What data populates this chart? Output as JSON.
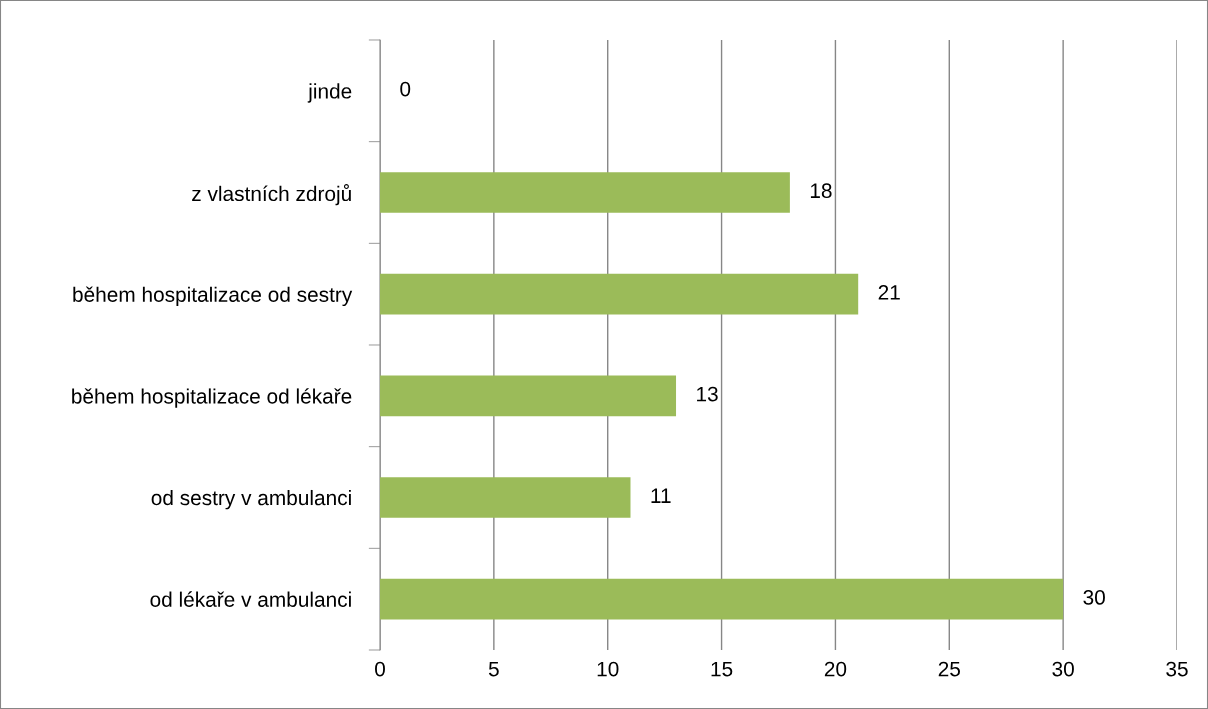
{
  "chart_data": {
    "type": "bar",
    "orientation": "horizontal",
    "categories": [
      "jinde",
      "z vlastních zdrojů",
      "během hospitalizace od sestry",
      "během hospitalizace od lékaře",
      "od sestry v ambulanci",
      "od lékaře v ambulanci"
    ],
    "values": [
      0,
      18,
      21,
      13,
      11,
      30
    ],
    "color": "#9bbb59",
    "xlim": [
      0,
      35
    ],
    "xticks": [
      0,
      5,
      10,
      15,
      20,
      25,
      30,
      35
    ],
    "grid": "x",
    "data_labels": true
  }
}
